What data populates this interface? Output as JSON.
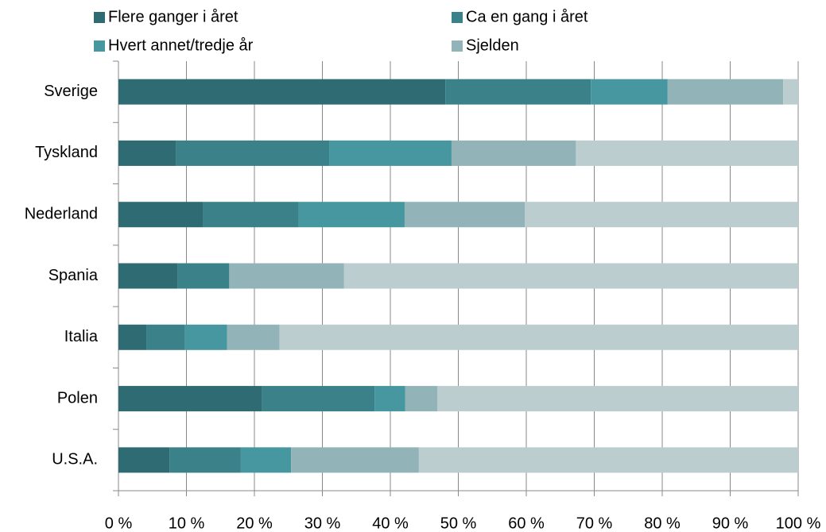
{
  "chart_data": {
    "type": "stacked-barh",
    "categories": [
      "Sverige",
      "Tyskland",
      "Nederland",
      "Spania",
      "Italia",
      "Polen",
      "U.S.A."
    ],
    "series": [
      {
        "name": "Flere ganger i året",
        "color": "#2f6b73",
        "values": [
          48.1,
          8.5,
          12.4,
          8.7,
          4.1,
          21.1,
          7.5
        ]
      },
      {
        "name": "Ca en gang i året",
        "color": "#3a8189",
        "values": [
          21.4,
          22.5,
          14.1,
          7.6,
          5.7,
          16.6,
          10.5
        ]
      },
      {
        "name": "Hvert annet/tredje år",
        "color": "#4797a0",
        "values": [
          11.3,
          18.0,
          15.6,
          0,
          6.2,
          4.5,
          7.4
        ]
      },
      {
        "name": "Sjelden",
        "color": "#92b4b8",
        "values": [
          17.0,
          18.3,
          17.7,
          16.9,
          7.7,
          4.7,
          18.8
        ]
      },
      {
        "color": "#bccdd0",
        "values": [
          2.2,
          32.7,
          40.2,
          66.8,
          76.3,
          53.1,
          55.8
        ]
      }
    ],
    "xlim": [
      0,
      100
    ],
    "xticks": [
      {
        "value": 0,
        "label": "0 %"
      },
      {
        "value": 10,
        "label": "10 %"
      },
      {
        "value": 20,
        "label": "20 %"
      },
      {
        "value": 30,
        "label": "30 %"
      },
      {
        "value": 40,
        "label": "40 %"
      },
      {
        "value": 50,
        "label": "50 %"
      },
      {
        "value": 60,
        "label": "60 %"
      },
      {
        "value": 70,
        "label": "70 %"
      },
      {
        "value": 80,
        "label": "80 %"
      },
      {
        "value": 90,
        "label": "90 %"
      },
      {
        "value": 100,
        "label": "100 %"
      }
    ],
    "grid": true
  }
}
